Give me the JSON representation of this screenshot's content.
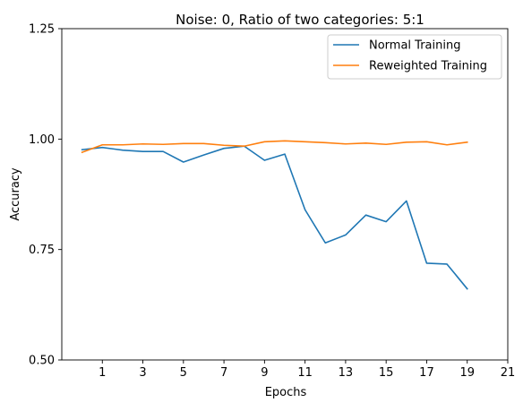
{
  "chart_data": {
    "type": "line",
    "title": "Noise: 0, Ratio of two categories: 5:1",
    "xlabel": "Epochs",
    "ylabel": "Accuracy",
    "xlim": [
      -1,
      21
    ],
    "ylim": [
      0.5,
      1.25
    ],
    "xticks": [
      1,
      3,
      5,
      7,
      9,
      11,
      13,
      15,
      17,
      19,
      21
    ],
    "xtick_labels": [
      "1",
      "3",
      "5",
      "7",
      "9",
      "11",
      "13",
      "15",
      "17",
      "19",
      "21"
    ],
    "yticks": [
      0.5,
      0.75,
      1.0,
      1.25
    ],
    "ytick_labels": [
      "0.50",
      "0.75",
      "1.00",
      "1.25"
    ],
    "grid": false,
    "legend_position": "top-right",
    "x": [
      0,
      1,
      2,
      3,
      4,
      5,
      6,
      7,
      8,
      9,
      10,
      11,
      12,
      13,
      14,
      15,
      16,
      17,
      18,
      19
    ],
    "series": [
      {
        "name": "Normal Training",
        "color": "#1f77b4",
        "values": [
          0.976,
          0.981,
          0.975,
          0.972,
          0.972,
          0.948,
          0.964,
          0.979,
          0.984,
          0.952,
          0.966,
          0.84,
          0.765,
          0.783,
          0.828,
          0.813,
          0.86,
          0.719,
          0.717,
          0.661
        ]
      },
      {
        "name": "Reweighted Training",
        "color": "#ff7f0e",
        "values": [
          0.97,
          0.987,
          0.987,
          0.989,
          0.988,
          0.99,
          0.99,
          0.986,
          0.984,
          0.994,
          0.996,
          0.994,
          0.992,
          0.989,
          0.991,
          0.988,
          0.993,
          0.994,
          0.987,
          0.993
        ]
      }
    ]
  }
}
